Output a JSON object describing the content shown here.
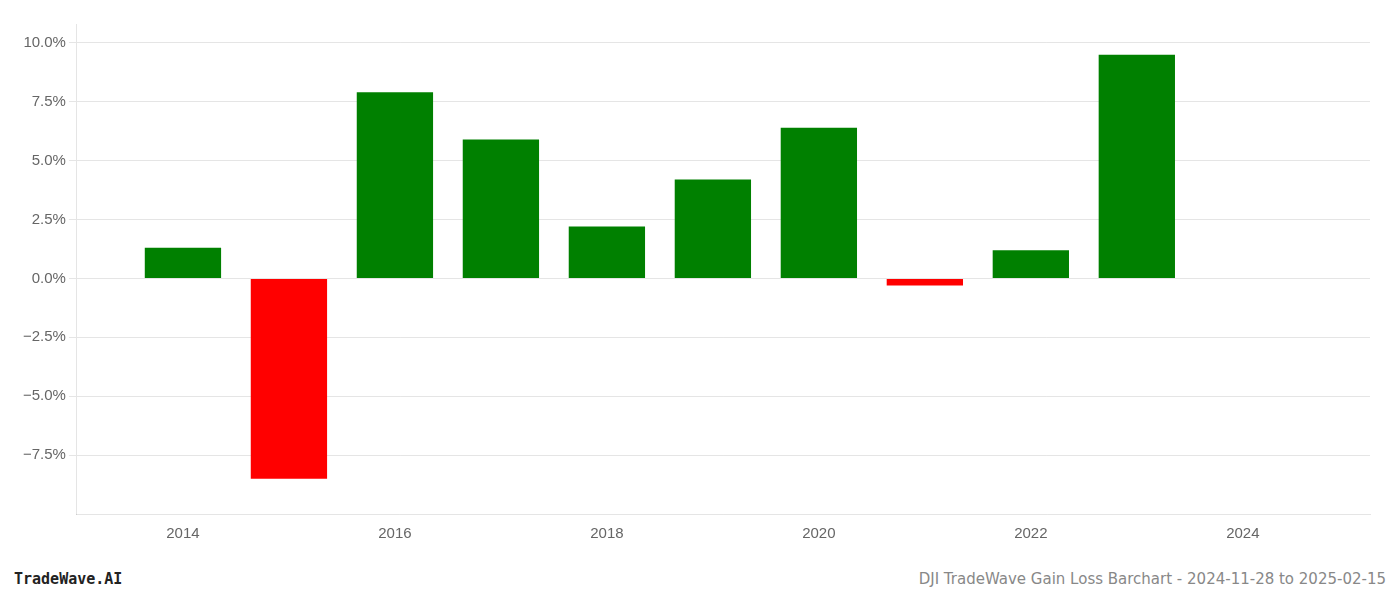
{
  "chart_data": {
    "type": "bar",
    "x": [
      2014,
      2015,
      2016,
      2017,
      2018,
      2019,
      2020,
      2021,
      2022,
      2023
    ],
    "values": [
      1.3,
      -8.5,
      7.9,
      5.9,
      2.2,
      4.2,
      6.4,
      -0.3,
      1.2,
      9.5
    ],
    "colors": [
      "#008000",
      "#ff0000",
      "#008000",
      "#008000",
      "#008000",
      "#008000",
      "#008000",
      "#ff0000",
      "#008000",
      "#008000"
    ],
    "xlim": [
      2013.0,
      2025.2
    ],
    "xticks": [
      2014,
      2016,
      2018,
      2020,
      2022,
      2024
    ],
    "ylim": [
      -10.0,
      10.8
    ],
    "yticks": [
      {
        "value": -7.5,
        "label": "−7.5%"
      },
      {
        "value": -5.0,
        "label": "−5.0%"
      },
      {
        "value": -2.5,
        "label": "−2.5%"
      },
      {
        "value": 0.0,
        "label": "0.0%"
      },
      {
        "value": 2.5,
        "label": "2.5%"
      },
      {
        "value": 5.0,
        "label": "5.0%"
      },
      {
        "value": 7.5,
        "label": "7.5%"
      },
      {
        "value": 10.0,
        "label": "10.0%"
      }
    ],
    "grid": true,
    "annotations": [
      "TradeWave.AI",
      "DJI TradeWave Gain Loss Barchart - 2024-11-28 to 2025-02-15"
    ]
  }
}
